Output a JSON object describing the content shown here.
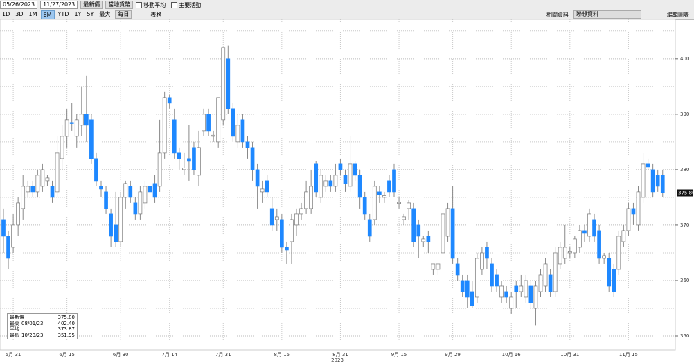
{
  "toolbar": {
    "start_date": "05/26/2023",
    "end_date": "11/27/2023",
    "field": "最新價",
    "currency": "當地貨幣",
    "checkboxes": [
      "移動平均",
      "主要活動"
    ],
    "ranges": [
      "1D",
      "3D",
      "1M",
      "6M",
      "YTD",
      "1Y",
      "5Y",
      "最大"
    ],
    "active_range": "6M",
    "frequency": "每日",
    "table": "表格",
    "related": "相關資料",
    "associated": "聯想資料",
    "edit": "編輯圖表"
  },
  "legend": {
    "items": [
      {
        "name": "最新價",
        "value": "375.80"
      },
      {
        "name": "最高",
        "date": "08/01/23",
        "value": "402.40"
      },
      {
        "name": "平均",
        "value": "373.87"
      },
      {
        "name": "最低",
        "date": "10/23/23",
        "value": "351.95"
      }
    ]
  },
  "chart_data": {
    "type": "candlestick",
    "up_color": "#ffffff",
    "down_color": "#1e88ff",
    "wick_color": "#888888",
    "ylim": [
      347.5,
      407.1
    ],
    "yticks": [
      350,
      360,
      370,
      380,
      390,
      400
    ],
    "minor_yticks": [
      355,
      365,
      375,
      385,
      395,
      405
    ],
    "grid": true,
    "x_sublabel": "2023",
    "categories": [
      null,
      null,
      "5月 31",
      null,
      null,
      null,
      null,
      null,
      null,
      null,
      null,
      null,
      null,
      "6月 15",
      null,
      null,
      null,
      null,
      null,
      null,
      null,
      null,
      null,
      null,
      "6月 30",
      null,
      null,
      null,
      null,
      null,
      null,
      null,
      null,
      null,
      "7月 14",
      null,
      null,
      null,
      null,
      null,
      null,
      null,
      null,
      null,
      null,
      "7月 31",
      null,
      null,
      null,
      null,
      null,
      null,
      null,
      null,
      null,
      null,
      null,
      "8月 15",
      null,
      null,
      null,
      null,
      null,
      null,
      null,
      null,
      null,
      null,
      null,
      "8月 31",
      null,
      null,
      null,
      null,
      null,
      null,
      null,
      null,
      null,
      null,
      null,
      "9月 15",
      null,
      null,
      null,
      null,
      null,
      null,
      null,
      null,
      null,
      null,
      "9月 29",
      null,
      null,
      null,
      null,
      null,
      null,
      null,
      null,
      null,
      null,
      null,
      "10月 16",
      null,
      null,
      null,
      null,
      null,
      null,
      null,
      null,
      null,
      null,
      null,
      "10月 31",
      null,
      null,
      null,
      null,
      null,
      null,
      null,
      null,
      null,
      null,
      null,
      "11月 15",
      null,
      null,
      null,
      null,
      null,
      null,
      null
    ],
    "ohlc": [
      [
        371,
        373,
        365,
        368
      ],
      [
        368,
        369,
        362,
        364
      ],
      [
        366,
        372,
        365,
        370
      ],
      [
        370,
        375,
        368,
        374
      ],
      [
        373,
        379,
        371,
        377
      ],
      [
        376,
        378,
        375,
        377
      ],
      [
        377,
        378,
        375,
        376
      ],
      [
        376,
        380,
        375,
        379
      ],
      [
        377,
        381,
        376,
        380
      ],
      [
        378,
        379,
        377,
        378.5
      ],
      [
        377,
        378,
        374,
        375
      ],
      [
        376,
        386,
        375,
        383
      ],
      [
        382,
        388,
        380,
        386
      ],
      [
        386,
        391,
        384,
        389
      ],
      [
        388.5,
        392,
        387,
        388.3
      ],
      [
        386,
        390,
        384,
        389
      ],
      [
        388,
        395,
        386,
        390
      ],
      [
        390,
        397,
        385,
        388
      ],
      [
        389,
        390,
        381,
        382
      ],
      [
        382,
        383,
        377,
        378
      ],
      [
        377,
        378,
        375,
        376.5
      ],
      [
        376,
        377,
        372,
        373
      ],
      [
        372,
        373,
        366,
        368
      ],
      [
        370,
        376,
        366,
        367
      ],
      [
        367,
        376,
        366,
        375
      ],
      [
        375,
        378,
        373,
        377.5
      ],
      [
        377,
        378,
        374,
        375
      ],
      [
        374,
        375,
        371,
        372
      ],
      [
        372,
        377,
        371,
        376
      ],
      [
        374,
        378,
        373,
        377
      ],
      [
        377,
        378,
        375,
        376
      ],
      [
        377.5,
        379,
        374,
        375
      ],
      [
        377,
        389,
        376,
        383
      ],
      [
        383,
        394,
        382,
        393
      ],
      [
        393,
        393.5,
        391,
        392
      ],
      [
        389,
        391,
        382,
        383
      ],
      [
        383,
        384,
        380,
        382
      ],
      [
        380,
        383,
        379,
        380.3
      ],
      [
        382,
        388,
        378,
        381.5
      ],
      [
        384,
        385,
        379,
        380
      ],
      [
        379,
        387,
        377,
        384
      ],
      [
        387,
        391,
        386,
        390
      ],
      [
        390,
        391,
        386,
        387
      ],
      [
        386,
        387,
        385,
        386.2
      ],
      [
        385,
        393,
        384,
        393
      ],
      [
        389,
        402,
        388,
        402
      ],
      [
        400,
        402.4,
        390,
        391
      ],
      [
        391,
        392,
        385,
        386
      ],
      [
        385,
        390,
        384,
        388
      ],
      [
        389,
        390,
        384,
        385
      ],
      [
        385,
        386,
        382,
        384
      ],
      [
        384,
        385,
        378,
        380
      ],
      [
        380,
        381,
        373,
        377
      ],
      [
        376,
        378,
        374,
        376.5
      ],
      [
        378,
        379,
        375,
        376
      ],
      [
        373,
        375,
        369,
        370
      ],
      [
        371,
        373,
        369,
        371.5
      ],
      [
        371,
        372,
        365,
        366
      ],
      [
        366,
        367,
        363,
        365.5
      ],
      [
        367,
        372,
        363,
        371
      ],
      [
        370,
        373,
        368,
        372
      ],
      [
        372,
        374,
        371,
        373
      ],
      [
        373,
        378,
        372,
        376
      ],
      [
        373,
        380,
        372,
        377
      ],
      [
        381,
        381.5,
        375,
        376
      ],
      [
        375,
        380,
        374,
        379
      ],
      [
        377,
        379,
        376,
        378
      ],
      [
        378,
        379,
        376,
        377
      ],
      [
        377,
        381,
        376,
        379
      ],
      [
        381,
        382,
        379,
        380
      ],
      [
        379,
        380,
        376,
        377.5
      ],
      [
        377,
        386,
        376,
        381
      ],
      [
        381,
        381.5,
        378,
        379
      ],
      [
        379,
        380,
        373,
        375
      ],
      [
        375,
        376,
        371,
        372
      ],
      [
        371,
        372,
        367,
        368
      ],
      [
        371,
        378,
        370,
        377
      ],
      [
        376,
        377,
        374,
        375.5
      ],
      [
        375,
        376,
        374,
        375.3
      ],
      [
        378,
        379,
        375,
        376
      ],
      [
        380,
        381,
        375,
        376
      ],
      [
        373.9,
        375,
        373,
        374.1
      ],
      [
        371,
        372,
        370,
        371.5
      ],
      [
        373,
        374.5,
        371,
        374
      ],
      [
        373,
        374,
        366,
        367
      ],
      [
        370,
        371,
        364,
        368
      ],
      [
        367,
        368,
        366,
        367.5
      ],
      [
        368,
        369,
        365,
        367
      ],
      [
        362,
        363,
        361,
        363
      ],
      [
        362,
        363,
        361,
        363
      ],
      [
        365,
        374,
        364,
        372
      ],
      [
        368,
        374,
        367,
        373
      ],
      [
        373,
        377,
        363,
        364
      ],
      [
        363,
        364,
        360,
        361
      ],
      [
        360,
        361,
        357,
        358
      ],
      [
        360,
        361,
        355,
        357
      ],
      [
        358,
        360,
        355,
        355.5
      ],
      [
        357,
        365,
        356,
        364
      ],
      [
        362,
        366,
        361,
        365
      ],
      [
        366,
        367,
        362,
        364
      ],
      [
        363,
        364,
        358,
        359
      ],
      [
        361,
        362,
        358,
        359
      ],
      [
        357,
        360,
        356,
        359
      ],
      [
        358,
        359,
        356,
        357
      ],
      [
        355,
        358,
        354,
        357
      ],
      [
        359,
        360,
        355,
        358
      ],
      [
        358,
        361,
        357,
        359
      ],
      [
        357,
        361,
        356,
        360
      ],
      [
        359,
        360,
        355,
        356
      ],
      [
        355,
        360,
        351.95,
        359
      ],
      [
        358,
        362,
        357,
        361
      ],
      [
        359,
        364,
        358,
        363
      ],
      [
        361,
        362,
        357,
        358
      ],
      [
        358,
        366,
        357,
        365
      ],
      [
        363,
        367,
        362,
        366
      ],
      [
        364,
        370,
        363,
        366
      ],
      [
        365,
        366,
        364,
        365.2
      ],
      [
        365,
        368,
        364,
        367.5
      ],
      [
        366,
        370,
        365,
        369
      ],
      [
        369,
        370,
        367,
        368.5
      ],
      [
        368,
        373,
        367,
        372
      ],
      [
        371,
        372,
        367,
        368
      ],
      [
        369,
        370,
        363,
        364
      ],
      [
        364,
        365,
        363,
        364.5
      ],
      [
        364,
        365,
        358,
        359
      ],
      [
        362,
        363,
        357,
        358
      ],
      [
        362,
        369,
        361,
        368
      ],
      [
        367,
        370,
        366,
        369
      ],
      [
        369,
        374,
        368,
        373
      ],
      [
        373,
        374,
        370,
        372
      ],
      [
        370,
        377,
        369,
        376
      ],
      [
        375,
        383,
        374,
        381
      ],
      [
        381,
        382,
        380,
        380.5
      ],
      [
        380,
        381,
        375,
        376
      ],
      [
        379,
        380,
        376,
        377
      ],
      [
        379,
        380,
        375,
        375.8
      ]
    ]
  }
}
